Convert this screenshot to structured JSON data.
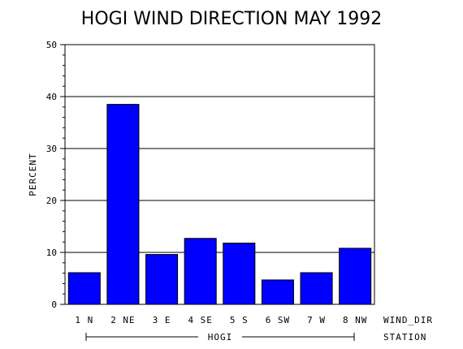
{
  "chart_data": {
    "type": "bar",
    "title": "HOGI WIND DIRECTION MAY 1992",
    "ylabel": "PERCENT",
    "ylim": [
      0,
      50
    ],
    "yticks": [
      "0",
      "10",
      "20",
      "30",
      "40",
      "50"
    ],
    "grid": true,
    "bar_color": "#0000ff",
    "categories": [
      "1 N",
      "2 NE",
      "3 E",
      "4 SE",
      "5 S",
      "6 SW",
      "7 W",
      "8 NW"
    ],
    "values": [
      6.1,
      38.5,
      9.6,
      12.7,
      11.8,
      4.7,
      6.1,
      10.8
    ],
    "xlabel": "WIND_DIR",
    "group_label": "HOGI",
    "group_axis_label": "STATION"
  }
}
